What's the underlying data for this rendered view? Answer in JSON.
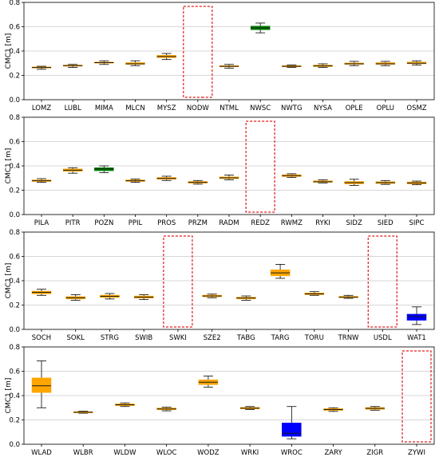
{
  "colors": {
    "orange": "#FFA500",
    "green": "#008000",
    "blue": "#0000FF",
    "median": "#1a1a1a",
    "grid": "#b0b0b0",
    "missing_box": "#e41a1c"
  },
  "chart_data": [
    {
      "type": "box",
      "ylabel": "CMC1 [m]",
      "ylim": [
        0,
        0.8
      ],
      "yticks": [
        "0.0",
        "0.2",
        "0.4",
        "0.6",
        "0.8"
      ],
      "grid": "horizontal",
      "categories": [
        "LOMZ",
        "LUBL",
        "MIMA",
        "MLCN",
        "MYSZ",
        "NODW",
        "NTML",
        "NWSC",
        "NWTG",
        "NYSA",
        "OPLE",
        "OPLU",
        "OSMZ"
      ],
      "boxes": [
        {
          "station": "LOMZ",
          "whisker_low": 0.25,
          "q1": 0.26,
          "median": 0.265,
          "q3": 0.27,
          "whisker_high": 0.275,
          "color": "orange"
        },
        {
          "station": "LUBL",
          "whisker_low": 0.265,
          "q1": 0.275,
          "median": 0.28,
          "q3": 0.285,
          "whisker_high": 0.29,
          "color": "orange"
        },
        {
          "station": "MIMA",
          "whisker_low": 0.29,
          "q1": 0.3,
          "median": 0.305,
          "q3": 0.31,
          "whisker_high": 0.32,
          "color": "orange"
        },
        {
          "station": "MLCN",
          "whisker_low": 0.28,
          "q1": 0.29,
          "median": 0.295,
          "q3": 0.305,
          "whisker_high": 0.32,
          "color": "orange"
        },
        {
          "station": "MYSZ",
          "whisker_low": 0.33,
          "q1": 0.345,
          "median": 0.355,
          "q3": 0.365,
          "whisker_high": 0.38,
          "color": "orange"
        },
        {
          "station": "NODW",
          "missing": true
        },
        {
          "station": "NTML",
          "whisker_low": 0.26,
          "q1": 0.27,
          "median": 0.275,
          "q3": 0.28,
          "whisker_high": 0.29,
          "color": "orange"
        },
        {
          "station": "NWSC",
          "whisker_low": 0.55,
          "q1": 0.575,
          "median": 0.59,
          "q3": 0.605,
          "whisker_high": 0.63,
          "color": "green"
        },
        {
          "station": "NWTG",
          "whisker_low": 0.265,
          "q1": 0.27,
          "median": 0.275,
          "q3": 0.28,
          "whisker_high": 0.285,
          "color": "orange"
        },
        {
          "station": "NYSA",
          "whisker_low": 0.265,
          "q1": 0.272,
          "median": 0.278,
          "q3": 0.285,
          "whisker_high": 0.295,
          "color": "orange"
        },
        {
          "station": "OPLE",
          "whisker_low": 0.28,
          "q1": 0.29,
          "median": 0.295,
          "q3": 0.302,
          "whisker_high": 0.315,
          "color": "orange"
        },
        {
          "station": "OPLU",
          "whisker_low": 0.28,
          "q1": 0.29,
          "median": 0.295,
          "q3": 0.305,
          "whisker_high": 0.315,
          "color": "orange"
        },
        {
          "station": "OSMZ",
          "whisker_low": 0.285,
          "q1": 0.295,
          "median": 0.3,
          "q3": 0.31,
          "whisker_high": 0.32,
          "color": "orange"
        }
      ]
    },
    {
      "type": "box",
      "ylabel": "CMC1 [m]",
      "ylim": [
        0,
        0.8
      ],
      "yticks": [
        "0.0",
        "0.2",
        "0.4",
        "0.6",
        "0.8"
      ],
      "grid": "horizontal",
      "categories": [
        "PILA",
        "PITR",
        "POZN",
        "PPIL",
        "PROS",
        "PRZM",
        "RADM",
        "REDZ",
        "RWMZ",
        "RYKI",
        "SIDZ",
        "SIED",
        "SIPC"
      ],
      "boxes": [
        {
          "station": "PILA",
          "whisker_low": 0.265,
          "q1": 0.272,
          "median": 0.278,
          "q3": 0.285,
          "whisker_high": 0.295,
          "color": "orange"
        },
        {
          "station": "PITR",
          "whisker_low": 0.34,
          "q1": 0.355,
          "median": 0.365,
          "q3": 0.375,
          "whisker_high": 0.385,
          "color": "orange"
        },
        {
          "station": "POZN",
          "whisker_low": 0.345,
          "q1": 0.36,
          "median": 0.375,
          "q3": 0.385,
          "whisker_high": 0.4,
          "color": "green"
        },
        {
          "station": "PPIL",
          "whisker_low": 0.265,
          "q1": 0.272,
          "median": 0.278,
          "q3": 0.285,
          "whisker_high": 0.292,
          "color": "orange"
        },
        {
          "station": "PROS",
          "whisker_low": 0.28,
          "q1": 0.29,
          "median": 0.297,
          "q3": 0.305,
          "whisker_high": 0.315,
          "color": "orange"
        },
        {
          "station": "PRZM",
          "whisker_low": 0.25,
          "q1": 0.258,
          "median": 0.265,
          "q3": 0.272,
          "whisker_high": 0.28,
          "color": "orange"
        },
        {
          "station": "RADM",
          "whisker_low": 0.285,
          "q1": 0.295,
          "median": 0.302,
          "q3": 0.31,
          "whisker_high": 0.325,
          "color": "orange"
        },
        {
          "station": "REDZ",
          "missing": true
        },
        {
          "station": "RWMZ",
          "whisker_low": 0.305,
          "q1": 0.312,
          "median": 0.32,
          "q3": 0.328,
          "whisker_high": 0.335,
          "color": "orange"
        },
        {
          "station": "RYKI",
          "whisker_low": 0.26,
          "q1": 0.265,
          "median": 0.27,
          "q3": 0.278,
          "whisker_high": 0.285,
          "color": "orange"
        },
        {
          "station": "SIDZ",
          "whisker_low": 0.24,
          "q1": 0.252,
          "median": 0.262,
          "q3": 0.272,
          "whisker_high": 0.29,
          "color": "orange"
        },
        {
          "station": "SIED",
          "whisker_low": 0.248,
          "q1": 0.255,
          "median": 0.262,
          "q3": 0.27,
          "whisker_high": 0.28,
          "color": "orange"
        },
        {
          "station": "SIPC",
          "whisker_low": 0.245,
          "q1": 0.252,
          "median": 0.26,
          "q3": 0.268,
          "whisker_high": 0.275,
          "color": "orange"
        }
      ]
    },
    {
      "type": "box",
      "ylabel": "CMC1 [m]",
      "ylim": [
        0,
        0.8
      ],
      "yticks": [
        "0.0",
        "0.2",
        "0.4",
        "0.6",
        "0.8"
      ],
      "grid": "horizontal",
      "categories": [
        "SOCH",
        "SOKL",
        "STRG",
        "SWIB",
        "SWKI",
        "SZE2",
        "TABG",
        "TARG",
        "TORU",
        "TRNW",
        "USDL",
        "WAT1"
      ],
      "boxes": [
        {
          "station": "SOCH",
          "whisker_low": 0.28,
          "q1": 0.292,
          "median": 0.305,
          "q3": 0.315,
          "whisker_high": 0.33,
          "color": "orange"
        },
        {
          "station": "SOKL",
          "whisker_low": 0.24,
          "q1": 0.25,
          "median": 0.26,
          "q3": 0.27,
          "whisker_high": 0.285,
          "color": "orange"
        },
        {
          "station": "STRG",
          "whisker_low": 0.25,
          "q1": 0.262,
          "median": 0.272,
          "q3": 0.282,
          "whisker_high": 0.295,
          "color": "orange"
        },
        {
          "station": "SWIB",
          "whisker_low": 0.245,
          "q1": 0.257,
          "median": 0.265,
          "q3": 0.275,
          "whisker_high": 0.285,
          "color": "orange"
        },
        {
          "station": "SWKI",
          "missing": true
        },
        {
          "station": "SZE2",
          "whisker_low": 0.26,
          "q1": 0.268,
          "median": 0.275,
          "q3": 0.282,
          "whisker_high": 0.29,
          "color": "orange"
        },
        {
          "station": "TABG",
          "whisker_low": 0.24,
          "q1": 0.25,
          "median": 0.258,
          "q3": 0.265,
          "whisker_high": 0.275,
          "color": "orange"
        },
        {
          "station": "TARG",
          "whisker_low": 0.42,
          "q1": 0.44,
          "median": 0.465,
          "q3": 0.49,
          "whisker_high": 0.535,
          "color": "orange"
        },
        {
          "station": "TORU",
          "whisker_low": 0.28,
          "q1": 0.285,
          "median": 0.292,
          "q3": 0.3,
          "whisker_high": 0.31,
          "color": "orange"
        },
        {
          "station": "TRNW",
          "whisker_low": 0.255,
          "q1": 0.26,
          "median": 0.265,
          "q3": 0.272,
          "whisker_high": 0.28,
          "color": "orange"
        },
        {
          "station": "USDL",
          "missing": true
        },
        {
          "station": "WAT1",
          "whisker_low": 0.04,
          "q1": 0.075,
          "median": 0.105,
          "q3": 0.125,
          "whisker_high": 0.185,
          "color": "blue"
        }
      ]
    },
    {
      "type": "box",
      "ylabel": "CMC1 [m]",
      "ylim": [
        0,
        0.8
      ],
      "yticks": [
        "0.0",
        "0.2",
        "0.4",
        "0.6",
        "0.8"
      ],
      "grid": "horizontal",
      "categories": [
        "WLAD",
        "WLBR",
        "WLDW",
        "WLOC",
        "WODZ",
        "WRKI",
        "WROC",
        "ZARY",
        "ZIGR",
        "ZYWI"
      ],
      "boxes": [
        {
          "station": "WLAD",
          "whisker_low": 0.3,
          "q1": 0.425,
          "median": 0.48,
          "q3": 0.545,
          "whisker_high": 0.685,
          "color": "orange"
        },
        {
          "station": "WLBR",
          "whisker_low": 0.255,
          "q1": 0.258,
          "median": 0.263,
          "q3": 0.268,
          "whisker_high": 0.272,
          "color": "orange"
        },
        {
          "station": "WLDW",
          "whisker_low": 0.31,
          "q1": 0.317,
          "median": 0.325,
          "q3": 0.332,
          "whisker_high": 0.34,
          "color": "orange"
        },
        {
          "station": "WLOC",
          "whisker_low": 0.275,
          "q1": 0.283,
          "median": 0.29,
          "q3": 0.298,
          "whisker_high": 0.305,
          "color": "orange"
        },
        {
          "station": "WODZ",
          "whisker_low": 0.47,
          "q1": 0.49,
          "median": 0.51,
          "q3": 0.53,
          "whisker_high": 0.56,
          "color": "orange"
        },
        {
          "station": "WRKI",
          "whisker_low": 0.285,
          "q1": 0.29,
          "median": 0.297,
          "q3": 0.303,
          "whisker_high": 0.31,
          "color": "orange"
        },
        {
          "station": "WROC",
          "whisker_low": 0.045,
          "q1": 0.065,
          "median": 0.09,
          "q3": 0.175,
          "whisker_high": 0.31,
          "color": "blue"
        },
        {
          "station": "ZARY",
          "whisker_low": 0.27,
          "q1": 0.278,
          "median": 0.285,
          "q3": 0.293,
          "whisker_high": 0.3,
          "color": "orange"
        },
        {
          "station": "ZIGR",
          "whisker_low": 0.28,
          "q1": 0.287,
          "median": 0.295,
          "q3": 0.302,
          "whisker_high": 0.31,
          "color": "orange"
        },
        {
          "station": "ZYWI",
          "missing": true
        }
      ]
    }
  ]
}
